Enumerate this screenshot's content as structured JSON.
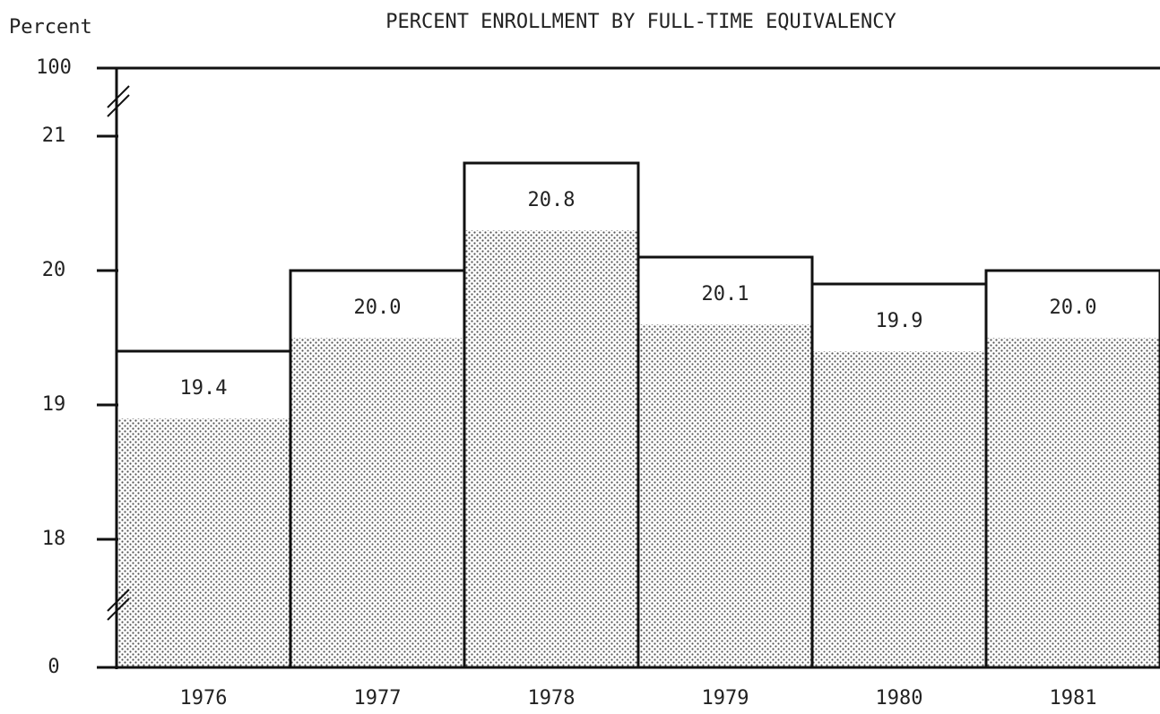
{
  "chart_data": {
    "type": "bar",
    "title": "PERCENT ENROLLMENT BY FULL-TIME EQUIVALENCY",
    "y_label": "Percent",
    "categories": [
      "1976",
      "1977",
      "1978",
      "1979",
      "1980",
      "1981"
    ],
    "values": [
      19.4,
      20,
      20.8,
      20.1,
      19.9,
      20
    ],
    "value_labels": [
      "19.4",
      "20.0",
      "20.8",
      "20.1",
      "19.9",
      "20.0"
    ],
    "ylim": [
      0,
      100
    ],
    "yticks": [
      0,
      18,
      19,
      20,
      21,
      100
    ],
    "broken_axis": true
  }
}
